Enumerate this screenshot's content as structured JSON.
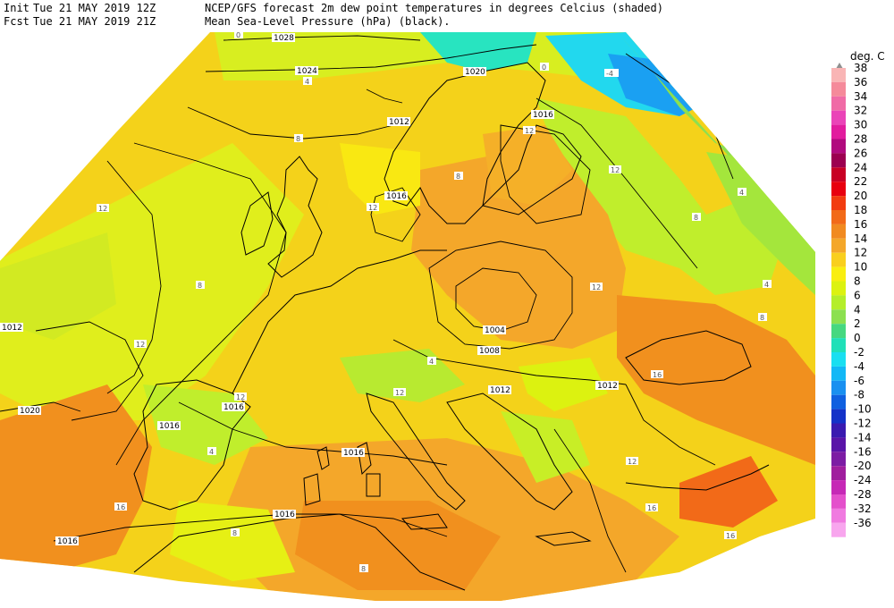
{
  "header": {
    "init_label": "Init",
    "init_time": "Tue 21 MAY 2019 12Z",
    "fcst_label": "Fcst",
    "fcst_time": "Tue 21 MAY 2019 21Z",
    "title_line1": "NCEP/GFS forecast 2m dew point temperatures in degrees Celcius (shaded)",
    "title_line2": "Mean Sea-Level Pressure (hPa) (black)."
  },
  "legend": {
    "unit": "deg. C",
    "levels": [
      "38",
      "36",
      "34",
      "32",
      "30",
      "28",
      "26",
      "24",
      "22",
      "20",
      "18",
      "16",
      "14",
      "12",
      "10",
      "8",
      "6",
      "4",
      "2",
      "0",
      "-2",
      "-4",
      "-6",
      "-8",
      "-10",
      "-12",
      "-14",
      "-16",
      "-20",
      "-24",
      "-28",
      "-32",
      "-36"
    ],
    "colors": [
      "#f9b5b5",
      "#f58a9a",
      "#f06ba6",
      "#ea44b8",
      "#e21c9e",
      "#b10a7e",
      "#9c0050",
      "#c80024",
      "#e8000f",
      "#f23c10",
      "#f26a18",
      "#f18a20",
      "#f4a72a",
      "#f9cf1e",
      "#f9ee10",
      "#dcf210",
      "#b4ee2a",
      "#8ce050",
      "#46d880",
      "#20e0b8",
      "#19dff1",
      "#12b8f6",
      "#1a90f0",
      "#1060e0",
      "#1432c8",
      "#3a1ab0",
      "#5a14a8",
      "#7c1ca4",
      "#a01e9e",
      "#c628b6",
      "#e450cc",
      "#f07ae0",
      "#f8a6ee"
    ]
  },
  "map": {
    "isobar_labels": [
      "1028",
      "1024",
      "1020",
      "1016",
      "1016",
      "1016",
      "1016",
      "1016",
      "1012",
      "1012",
      "1012",
      "1020",
      "1016",
      "1016",
      "1004",
      "1008",
      "1012"
    ],
    "dewpoint_labels": [
      "0",
      "4",
      "4",
      "8",
      "8",
      "12",
      "12",
      "12",
      "12",
      "12",
      "12",
      "12",
      "12",
      "16",
      "16",
      "16",
      "16",
      "8",
      "8",
      "8",
      "4",
      "4",
      "-4",
      "0",
      "8",
      "12",
      "4",
      "8"
    ]
  }
}
